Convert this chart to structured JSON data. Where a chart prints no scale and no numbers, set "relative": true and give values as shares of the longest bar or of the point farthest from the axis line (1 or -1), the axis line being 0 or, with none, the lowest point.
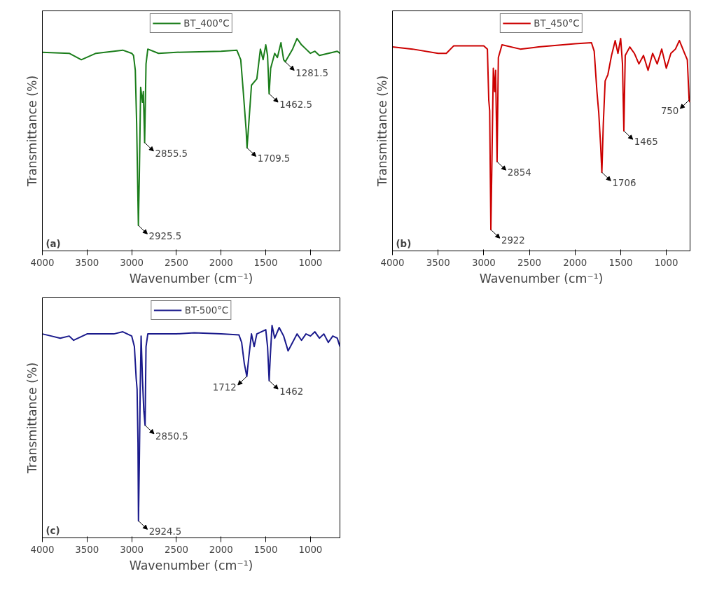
{
  "chart_data": [
    {
      "type": "line",
      "relative": true,
      "xlabel": "Wavenumber (cm⁻¹)",
      "ylabel": "Transmittance (%)",
      "xlim": [
        4000,
        670
      ],
      "xticks": [
        4000,
        3500,
        3000,
        2500,
        2000,
        1500,
        1000
      ],
      "legend": "top",
      "grid": false,
      "series": [
        {
          "name": "BT_400°C",
          "color": "#1a7d1a",
          "x": [
            4000,
            3700,
            3564,
            3400,
            3100,
            3000,
            2980,
            2960,
            2945,
            2925.5,
            2915,
            2900,
            2880,
            2870,
            2855.5,
            2840,
            2820,
            2700,
            2500,
            2000,
            1824,
            1780,
            1750,
            1720,
            1709.5,
            1690,
            1660,
            1600,
            1560,
            1530,
            1500,
            1480,
            1462.5,
            1445,
            1400,
            1370,
            1330,
            1300,
            1281.5,
            1200,
            1150,
            1100,
            1050,
            1000,
            950,
            900,
            800,
            700,
            670
          ],
          "values": [
            0.935,
            0.93,
            0.9,
            0.93,
            0.945,
            0.93,
            0.92,
            0.85,
            0.6,
            0.12,
            0.35,
            0.77,
            0.7,
            0.75,
            0.51,
            0.88,
            0.95,
            0.93,
            0.935,
            0.94,
            0.945,
            0.9,
            0.74,
            0.57,
            0.485,
            0.6,
            0.78,
            0.81,
            0.95,
            0.9,
            0.97,
            0.92,
            0.74,
            0.86,
            0.93,
            0.91,
            0.98,
            0.9,
            0.89,
            0.95,
            1.0,
            0.97,
            0.95,
            0.93,
            0.94,
            0.92,
            0.93,
            0.94,
            0.93
          ]
        }
      ],
      "annotations": [
        {
          "text": "2925.5",
          "x": 2925.5,
          "y": 0.12
        },
        {
          "text": "2855.5",
          "x": 2855.5,
          "y": 0.51
        },
        {
          "text": "1709.5",
          "x": 1709.5,
          "y": 0.485
        },
        {
          "text": "1462.5",
          "x": 1462.5,
          "y": 0.74
        },
        {
          "text": "1281.5",
          "x": 1281.5,
          "y": 0.89
        },
        "(a)"
      ]
    },
    {
      "type": "line",
      "relative": true,
      "xlabel": "Wavenumber (cm⁻¹)",
      "ylabel": "Transmittance (%)",
      "xlim": [
        4000,
        740
      ],
      "xticks": [
        4000,
        3500,
        3000,
        2500,
        2000,
        1500,
        1000
      ],
      "legend": "top",
      "grid": false,
      "series": [
        {
          "name": "BT_450°C",
          "color": "#cc0000",
          "x": [
            4000,
            3780,
            3500,
            3410,
            3330,
            3000,
            2960,
            2945,
            2935,
            2922,
            2910,
            2895,
            2880,
            2870,
            2854,
            2840,
            2800,
            2600,
            2400,
            2000,
            1820,
            1790,
            1760,
            1740,
            1720,
            1706,
            1690,
            1670,
            1640,
            1600,
            1560,
            1530,
            1500,
            1480,
            1465,
            1450,
            1400,
            1350,
            1300,
            1250,
            1200,
            1150,
            1100,
            1050,
            1000,
            950,
            900,
            857,
            800,
            770,
            750,
            740
          ],
          "values": [
            0.96,
            0.95,
            0.93,
            0.93,
            0.965,
            0.965,
            0.95,
            0.71,
            0.66,
            0.1,
            0.43,
            0.86,
            0.75,
            0.85,
            0.42,
            0.91,
            0.97,
            0.95,
            0.96,
            0.975,
            0.98,
            0.94,
            0.75,
            0.65,
            0.5,
            0.37,
            0.6,
            0.8,
            0.83,
            0.92,
            0.99,
            0.93,
            1.0,
            0.88,
            0.565,
            0.92,
            0.96,
            0.93,
            0.88,
            0.92,
            0.85,
            0.93,
            0.88,
            0.95,
            0.86,
            0.93,
            0.95,
            0.99,
            0.93,
            0.9,
            0.71,
            0.7
          ]
        }
      ],
      "annotations": [
        {
          "text": "2922",
          "x": 2922,
          "y": 0.1
        },
        {
          "text": "2854",
          "x": 2854,
          "y": 0.42
        },
        {
          "text": "1706",
          "x": 1706,
          "y": 0.37
        },
        {
          "text": "1465",
          "x": 1465,
          "y": 0.565
        },
        {
          "text": "750",
          "x": 750,
          "y": 0.71
        },
        "(b)"
      ]
    },
    {
      "type": "line",
      "relative": true,
      "xlabel": "Wavenumber (cm⁻¹)",
      "ylabel": "Transmittance (%)",
      "xlim": [
        4000,
        670
      ],
      "xticks": [
        4000,
        3500,
        3000,
        2500,
        2000,
        1500,
        1000
      ],
      "legend": "top",
      "grid": false,
      "series": [
        {
          "name": "BT-500°C",
          "color": "#1a1a8c",
          "x": [
            4000,
            3900,
            3800,
            3700,
            3650,
            3500,
            3200,
            3100,
            3000,
            2970,
            2950,
            2940,
            2930,
            2924.5,
            2915,
            2905,
            2895,
            2880,
            2865,
            2850.5,
            2840,
            2820,
            2500,
            2300,
            2000,
            1800,
            1770,
            1740,
            1712,
            1690,
            1660,
            1630,
            1600,
            1550,
            1500,
            1480,
            1462,
            1450,
            1430,
            1400,
            1350,
            1300,
            1250,
            1200,
            1150,
            1100,
            1050,
            1000,
            950,
            900,
            850,
            800,
            750,
            700,
            670
          ],
          "values": [
            0.96,
            0.95,
            0.94,
            0.95,
            0.93,
            0.96,
            0.96,
            0.97,
            0.95,
            0.9,
            0.75,
            0.7,
            0.45,
            0.08,
            0.35,
            0.7,
            0.95,
            0.75,
            0.6,
            0.53,
            0.9,
            0.96,
            0.96,
            0.965,
            0.96,
            0.955,
            0.92,
            0.82,
            0.76,
            0.85,
            0.96,
            0.9,
            0.96,
            0.97,
            0.98,
            0.9,
            0.74,
            0.85,
            1.0,
            0.94,
            0.99,
            0.95,
            0.88,
            0.92,
            0.96,
            0.93,
            0.96,
            0.95,
            0.97,
            0.94,
            0.96,
            0.92,
            0.95,
            0.94,
            0.9
          ]
        }
      ],
      "annotations": [
        {
          "text": "2924.5",
          "x": 2924.5,
          "y": 0.08
        },
        {
          "text": "2850.5",
          "x": 2850.5,
          "y": 0.53
        },
        {
          "text": "1712",
          "x": 1712,
          "y": 0.76
        },
        {
          "text": "1462",
          "x": 1462,
          "y": 0.74
        },
        "(c)"
      ]
    }
  ]
}
